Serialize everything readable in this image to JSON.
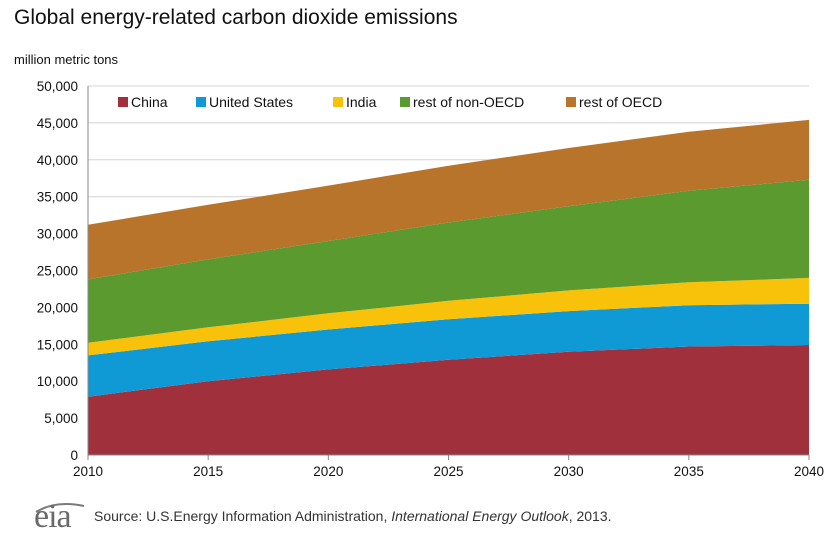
{
  "title": "Global energy-related carbon dioxide emissions",
  "unit_label": "million metric tons",
  "chart_data": {
    "type": "area",
    "stacked": true,
    "x": [
      2010,
      2015,
      2020,
      2025,
      2030,
      2035,
      2040
    ],
    "xlim": [
      2010,
      2040
    ],
    "ylim": [
      0,
      50000
    ],
    "yticks": [
      0,
      5000,
      10000,
      15000,
      20000,
      25000,
      30000,
      35000,
      40000,
      45000,
      50000
    ],
    "ytick_labels": [
      "0",
      "5,000",
      "10,000",
      "15,000",
      "20,000",
      "25,000",
      "30,000",
      "35,000",
      "40,000",
      "45,000",
      "50,000"
    ],
    "xtick_labels": [
      "2010",
      "2015",
      "2020",
      "2025",
      "2030",
      "2035",
      "2040"
    ],
    "grid": "horizontal",
    "legend_position": "top",
    "series": [
      {
        "name": "China",
        "color": "#a0303b",
        "values": [
          7900,
          10000,
          11600,
          12900,
          14000,
          14700,
          14900
        ]
      },
      {
        "name": "United States",
        "color": "#0f9ad6",
        "values": [
          5600,
          5400,
          5400,
          5500,
          5500,
          5600,
          5600
        ]
      },
      {
        "name": "India",
        "color": "#f9c20a",
        "values": [
          1700,
          1900,
          2200,
          2500,
          2800,
          3100,
          3500
        ]
      },
      {
        "name": "rest of non-OECD",
        "color": "#5a9a2f",
        "values": [
          8600,
          9200,
          9800,
          10600,
          11400,
          12400,
          13300
        ]
      },
      {
        "name": "rest of OECD",
        "color": "#b9742c",
        "values": [
          7400,
          7400,
          7500,
          7700,
          7900,
          8000,
          8100
        ]
      }
    ]
  },
  "footer": {
    "logo_text": "eia",
    "source_prefix": "Source:  U.S.Energy Information  Administration, ",
    "source_publication": "International Energy Outlook",
    "source_suffix": ", 2013."
  }
}
